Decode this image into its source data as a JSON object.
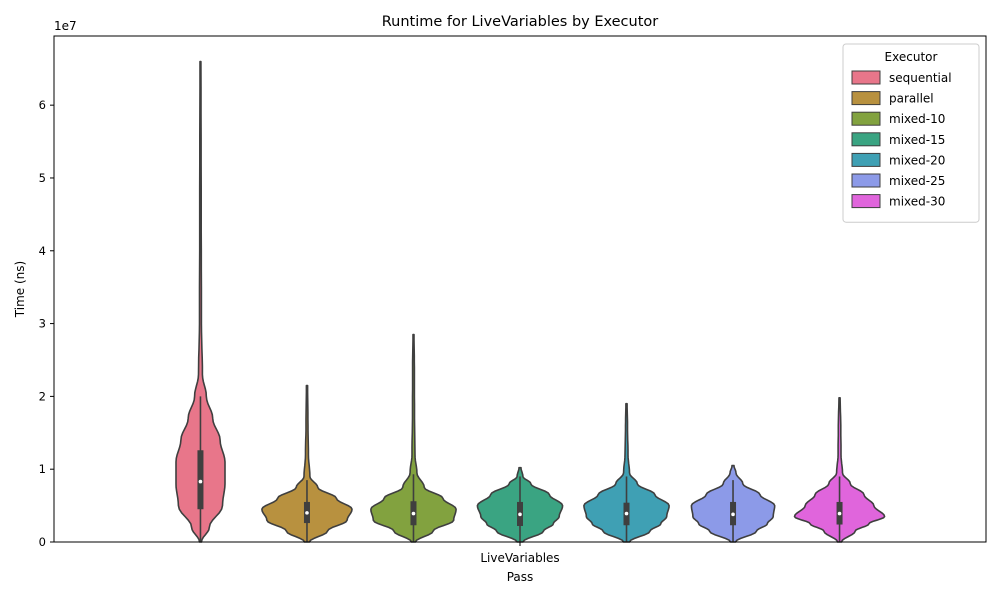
{
  "chart_data": {
    "type": "violin",
    "title": "Runtime for LiveVariables by Executor",
    "xlabel": "Pass",
    "ylabel": "Time (ns)",
    "y_scale_label": "1e7",
    "y_scale": 10000000,
    "ylim": [
      0,
      69500000
    ],
    "yticks": [
      0,
      10000000,
      20000000,
      30000000,
      40000000,
      50000000,
      60000000
    ],
    "ytick_labels": [
      "0",
      "1",
      "2",
      "3",
      "4",
      "5",
      "6"
    ],
    "categories": [
      "LiveVariables"
    ],
    "legend": {
      "title": "Executor",
      "placement": "top-right"
    },
    "series": [
      {
        "name": "sequential",
        "color": "#e8768a",
        "q1": 4500000,
        "median": 8300000,
        "q3": 12600000,
        "whisker_low": 0,
        "whisker_high": 20000000,
        "profile": [
          [
            0,
            0.02
          ],
          [
            2000000,
            0.18
          ],
          [
            5000000,
            0.45
          ],
          [
            8000000,
            0.5
          ],
          [
            11000000,
            0.5
          ],
          [
            14000000,
            0.4
          ],
          [
            17000000,
            0.25
          ],
          [
            20000000,
            0.12
          ],
          [
            23000000,
            0.04
          ],
          [
            30000000,
            0.02
          ],
          [
            45000000,
            0.015
          ],
          [
            66000000,
            0.01
          ]
        ]
      },
      {
        "name": "parallel",
        "color": "#b8913f",
        "q1": 2600000,
        "median": 4000000,
        "q3": 5500000,
        "whisker_low": 0,
        "whisker_high": 8500000,
        "profile": [
          [
            0,
            0.05
          ],
          [
            1500000,
            0.42
          ],
          [
            3000000,
            0.82
          ],
          [
            4500000,
            0.92
          ],
          [
            6000000,
            0.6
          ],
          [
            7500000,
            0.22
          ],
          [
            9000000,
            0.06
          ],
          [
            12000000,
            0.03
          ],
          [
            16000000,
            0.02
          ],
          [
            21500000,
            0.012
          ]
        ]
      },
      {
        "name": "mixed-10",
        "color": "#82a23f",
        "q1": 2300000,
        "median": 3900000,
        "q3": 5600000,
        "whisker_low": 0,
        "whisker_high": 9300000,
        "profile": [
          [
            0,
            0.04
          ],
          [
            1500000,
            0.4
          ],
          [
            3000000,
            0.82
          ],
          [
            4500000,
            0.87
          ],
          [
            6000000,
            0.6
          ],
          [
            7500000,
            0.22
          ],
          [
            9500000,
            0.07
          ],
          [
            12000000,
            0.03
          ],
          [
            18000000,
            0.02
          ],
          [
            24000000,
            0.018
          ],
          [
            28500000,
            0.01
          ]
        ]
      },
      {
        "name": "mixed-15",
        "color": "#3aa482",
        "q1": 2200000,
        "median": 3800000,
        "q3": 5500000,
        "whisker_low": 0,
        "whisker_high": 9000000,
        "profile": [
          [
            0,
            0.06
          ],
          [
            1500000,
            0.48
          ],
          [
            2500000,
            0.68
          ],
          [
            3500000,
            0.8
          ],
          [
            5000000,
            0.87
          ],
          [
            6500000,
            0.6
          ],
          [
            8000000,
            0.22
          ],
          [
            9000000,
            0.06
          ],
          [
            10200000,
            0.02
          ]
        ]
      },
      {
        "name": "mixed-20",
        "color": "#3fa0b4",
        "q1": 2300000,
        "median": 3900000,
        "q3": 5400000,
        "whisker_low": 0,
        "whisker_high": 9000000,
        "profile": [
          [
            0,
            0.06
          ],
          [
            1500000,
            0.48
          ],
          [
            2500000,
            0.7
          ],
          [
            3500000,
            0.82
          ],
          [
            5000000,
            0.87
          ],
          [
            6500000,
            0.58
          ],
          [
            8000000,
            0.22
          ],
          [
            9500000,
            0.06
          ],
          [
            12000000,
            0.03
          ],
          [
            16000000,
            0.02
          ],
          [
            19000000,
            0.012
          ]
        ]
      },
      {
        "name": "mixed-25",
        "color": "#8c9ae8",
        "q1": 2300000,
        "median": 3800000,
        "q3": 5500000,
        "whisker_low": 0,
        "whisker_high": 8500000,
        "profile": [
          [
            0,
            0.05
          ],
          [
            1500000,
            0.48
          ],
          [
            2500000,
            0.7
          ],
          [
            3500000,
            0.82
          ],
          [
            5000000,
            0.85
          ],
          [
            6500000,
            0.55
          ],
          [
            8000000,
            0.2
          ],
          [
            9500000,
            0.06
          ],
          [
            10500000,
            0.02
          ]
        ]
      },
      {
        "name": "mixed-30",
        "color": "#e065dc",
        "q1": 2400000,
        "median": 3900000,
        "q3": 5500000,
        "whisker_low": 0,
        "whisker_high": 9000000,
        "profile": [
          [
            0,
            0.04
          ],
          [
            1500000,
            0.32
          ],
          [
            2500000,
            0.6
          ],
          [
            3500000,
            0.92
          ],
          [
            5000000,
            0.7
          ],
          [
            6500000,
            0.5
          ],
          [
            8000000,
            0.22
          ],
          [
            9500000,
            0.06
          ],
          [
            12000000,
            0.03
          ],
          [
            16000000,
            0.025
          ],
          [
            19800000,
            0.012
          ]
        ]
      }
    ]
  }
}
